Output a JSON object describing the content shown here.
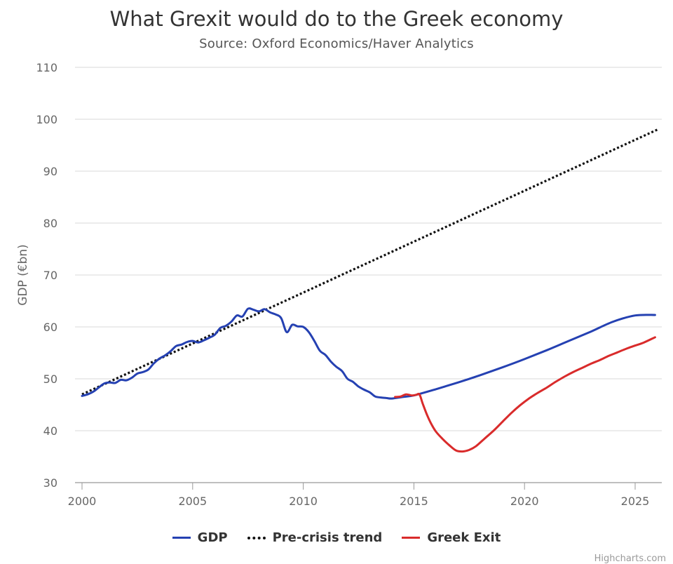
{
  "chart": {
    "title": "What Grexit would do to the Greek economy",
    "subtitle": "Source: Oxford Economics/Haver Analytics",
    "credit": "Highcharts.com"
  },
  "legend": {
    "gdp": "GDP",
    "trend": "Pre-crisis trend",
    "exit": "Greek Exit"
  },
  "colors": {
    "gdp": "#2541b2",
    "trend": "#111111",
    "exit": "#d92b2b",
    "grid": "#d8d8d8",
    "axis": "#999999"
  },
  "chart_data": {
    "type": "line",
    "title": "What Grexit would do to the Greek economy",
    "subtitle": "Source: Oxford Economics/Haver Analytics",
    "xlabel": "",
    "ylabel": "GDP (€bn)",
    "xlim": [
      2000,
      2026
    ],
    "ylim": [
      30,
      110
    ],
    "xticks": [
      2000,
      2005,
      2010,
      2015,
      2020,
      2025
    ],
    "yticks": [
      30,
      40,
      50,
      60,
      70,
      80,
      90,
      100,
      110
    ],
    "grid": true,
    "legend_position": "bottom",
    "series": [
      {
        "name": "GDP",
        "key": "gdp",
        "style": "solid",
        "x": [
          2000,
          2000.25,
          2000.5,
          2000.75,
          2001,
          2001.25,
          2001.5,
          2001.75,
          2002,
          2002.25,
          2002.5,
          2002.75,
          2003,
          2003.25,
          2003.5,
          2003.75,
          2004,
          2004.25,
          2004.5,
          2004.75,
          2005,
          2005.25,
          2005.5,
          2005.75,
          2006,
          2006.25,
          2006.5,
          2006.75,
          2007,
          2007.25,
          2007.5,
          2007.75,
          2008,
          2008.25,
          2008.5,
          2008.75,
          2009,
          2009.25,
          2009.5,
          2009.75,
          2010,
          2010.25,
          2010.5,
          2010.75,
          2011,
          2011.25,
          2011.5,
          2011.75,
          2012,
          2012.25,
          2012.5,
          2012.75,
          2013,
          2013.25,
          2013.5,
          2013.75,
          2014,
          2014.5,
          2015,
          2016,
          2017,
          2018,
          2019,
          2020,
          2021,
          2022,
          2023,
          2024,
          2025,
          2025.9
        ],
        "y": [
          46.7,
          47.0,
          47.5,
          48.3,
          49.1,
          49.3,
          49.2,
          49.8,
          49.7,
          50.2,
          51.0,
          51.3,
          51.8,
          53.0,
          53.9,
          54.5,
          55.3,
          56.3,
          56.6,
          57.1,
          57.3,
          57.0,
          57.4,
          57.9,
          58.5,
          59.8,
          60.2,
          61.0,
          62.2,
          62.0,
          63.5,
          63.3,
          63.0,
          63.4,
          62.8,
          62.4,
          61.7,
          59.0,
          60.4,
          60.1,
          60.0,
          59.0,
          57.3,
          55.4,
          54.6,
          53.3,
          52.3,
          51.5,
          50.0,
          49.4,
          48.5,
          47.9,
          47.4,
          46.6,
          46.4,
          46.3,
          46.2,
          46.5,
          46.8,
          48.0,
          49.3,
          50.7,
          52.2,
          53.8,
          55.5,
          57.3,
          59.1,
          61.0,
          62.2,
          62.3
        ]
      },
      {
        "name": "Pre-crisis trend",
        "key": "trend",
        "style": "dotted",
        "x": [
          2000,
          2026
        ],
        "y": [
          47.0,
          98.0
        ]
      },
      {
        "name": "Greek Exit",
        "key": "exit",
        "style": "solid",
        "x": [
          2014.15,
          2014.4,
          2014.65,
          2014.9,
          2015.1,
          2015.25,
          2015.4,
          2015.6,
          2015.8,
          2016.0,
          2016.3,
          2016.6,
          2016.9,
          2017.2,
          2017.5,
          2017.8,
          2018.2,
          2018.6,
          2019.0,
          2019.4,
          2019.8,
          2020.2,
          2020.6,
          2021.0,
          2021.4,
          2021.8,
          2022.2,
          2022.6,
          2023.0,
          2023.4,
          2023.8,
          2024.2,
          2024.6,
          2025.0,
          2025.4,
          2025.9
        ],
        "y": [
          46.5,
          46.6,
          47.0,
          46.8,
          46.9,
          47.0,
          45.2,
          43.0,
          41.2,
          39.8,
          38.4,
          37.2,
          36.2,
          36.0,
          36.3,
          37.0,
          38.5,
          40.0,
          41.7,
          43.4,
          44.9,
          46.2,
          47.3,
          48.3,
          49.4,
          50.4,
          51.3,
          52.1,
          52.9,
          53.6,
          54.4,
          55.1,
          55.8,
          56.4,
          57.0,
          58.0
        ]
      }
    ]
  }
}
